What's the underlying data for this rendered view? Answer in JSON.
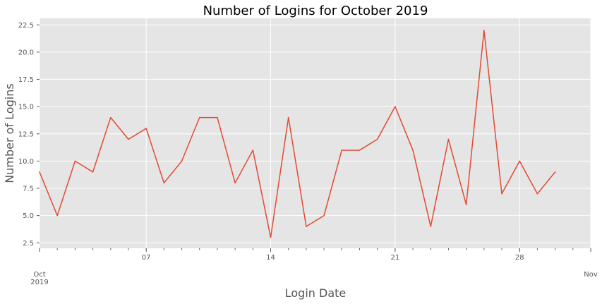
{
  "chart_data": {
    "type": "line",
    "title": "Number of Logins for October 2019",
    "xlabel": "Login Date",
    "ylabel": "Number of Logins",
    "x": [
      "2019-10-01",
      "2019-10-02",
      "2019-10-03",
      "2019-10-04",
      "2019-10-05",
      "2019-10-06",
      "2019-10-07",
      "2019-10-08",
      "2019-10-09",
      "2019-10-10",
      "2019-10-11",
      "2019-10-12",
      "2019-10-13",
      "2019-10-14",
      "2019-10-15",
      "2019-10-16",
      "2019-10-17",
      "2019-10-18",
      "2019-10-19",
      "2019-10-20",
      "2019-10-21",
      "2019-10-22",
      "2019-10-23",
      "2019-10-24",
      "2019-10-25",
      "2019-10-26",
      "2019-10-27",
      "2019-10-28",
      "2019-10-29",
      "2019-10-30"
    ],
    "series": [
      {
        "values": [
          9,
          5,
          10,
          9,
          14,
          12,
          13,
          8,
          10,
          14,
          14,
          8,
          11,
          3,
          14,
          4,
          5,
          11,
          11,
          12,
          15,
          11,
          4,
          12,
          6,
          22,
          7,
          10,
          7,
          9
        ]
      }
    ],
    "xlim": [
      "2019-10-01",
      "2019-11-01"
    ],
    "ylim": [
      2.0,
      23.1
    ],
    "yticks": [
      "2.5",
      "5.0",
      "7.5",
      "10.0",
      "12.5",
      "15.0",
      "17.5",
      "20.0",
      "22.5"
    ],
    "xticks": [
      {
        "date": "2019-10-01",
        "label": "Oct",
        "sublabel": "2019"
      },
      {
        "date": "2019-10-07",
        "label": "07"
      },
      {
        "date": "2019-10-14",
        "label": "14"
      },
      {
        "date": "2019-10-21",
        "label": "21"
      },
      {
        "date": "2019-10-28",
        "label": "28"
      },
      {
        "date": "2019-11-01",
        "label": "Nov"
      }
    ],
    "grid": true,
    "colors": {
      "line": "#E24A33",
      "background": "#E5E5E5",
      "grid": "#FFFFFF"
    }
  }
}
